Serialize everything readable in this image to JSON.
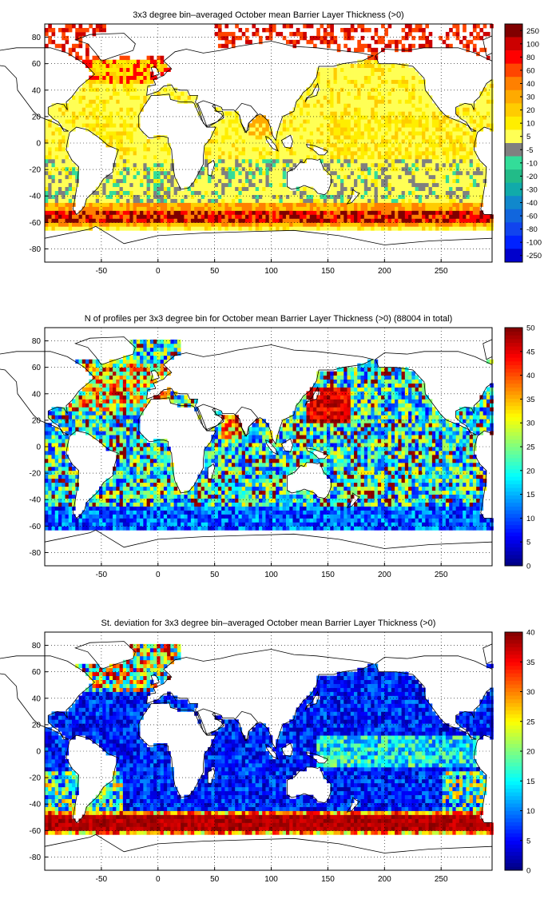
{
  "panels": [
    {
      "id": "bl-mean",
      "title": "3x3 degree bin–averaged October mean Barrier Layer Thickness (>0)",
      "colorbar": {
        "kind": "discrete",
        "tick_labels": [
          "250",
          "100",
          "80",
          "60",
          "40",
          "30",
          "20",
          "10",
          "5",
          "-5",
          "-10",
          "-20",
          "-30",
          "-40",
          "-60",
          "-80",
          "-100",
          "-250"
        ],
        "colors": [
          "#800000",
          "#cc0000",
          "#ff0000",
          "#ff4500",
          "#ff8000",
          "#ffaa00",
          "#ffcc00",
          "#ffee00",
          "#ffff55",
          "#808080",
          "#33dd99",
          "#22bb88",
          "#11aaaa",
          "#1188cc",
          "#1166dd",
          "#1144ee",
          "#0022ff",
          "#0000cc"
        ]
      }
    },
    {
      "id": "n-profiles",
      "title": "N of profiles per 3x3 degree bin for October mean Barrier Layer Thickness (>0) (88004 in total)",
      "colorbar": {
        "kind": "jet",
        "min": 0,
        "max": 50,
        "tick_labels": [
          "50",
          "45",
          "40",
          "35",
          "30",
          "25",
          "20",
          "15",
          "10",
          "5",
          "0"
        ]
      }
    },
    {
      "id": "st-dev",
      "title": "St. deviation for 3x3 degree bin–averaged October mean Barrier Layer Thickness (>0)",
      "colorbar": {
        "kind": "jet",
        "min": 0,
        "max": 40,
        "tick_labels": [
          "40",
          "35",
          "30",
          "25",
          "20",
          "15",
          "10",
          "5",
          "0"
        ]
      }
    }
  ],
  "axes": {
    "x_ticks": [
      "-50",
      "0",
      "50",
      "100",
      "150",
      "200",
      "250"
    ],
    "y_ticks": [
      "80",
      "60",
      "40",
      "20",
      "0",
      "-20",
      "-40",
      "-60",
      "-80"
    ],
    "xlim": [
      -100,
      295
    ],
    "ylim": [
      -90,
      90
    ],
    "grid": "dotted"
  },
  "chart_data": [
    {
      "type": "heatmap",
      "title": "3x3 degree bin–averaged October mean Barrier Layer Thickness (>0)",
      "xlim": [
        -100,
        295
      ],
      "ylim": [
        -90,
        90
      ],
      "bin_size_deg": 3,
      "colorbar_ticks": [
        250,
        100,
        80,
        60,
        40,
        30,
        20,
        10,
        5,
        -5,
        -10,
        -20,
        -30,
        -40,
        -60,
        -80,
        -100,
        -250
      ],
      "regions": [
        {
          "region": "Southern Ocean band (-48 to -62)",
          "value_range": "30–250"
        },
        {
          "region": "Tropical Pacific",
          "value_range": "5–20"
        },
        {
          "region": "Western tropical Atlantic / Bay of Bengal",
          "value_range": "5–30"
        },
        {
          "region": "Subtropics (most bins)",
          "value_range": "-5–5"
        },
        {
          "region": "South subtropical band (-15 to -35)",
          "value_range": "-5 to -20"
        },
        {
          "region": "Northern high latitudes",
          "value_range": "10–100"
        }
      ]
    },
    {
      "type": "heatmap",
      "title": "N of profiles per 3x3 degree bin for October mean Barrier Layer Thickness (>0) (88004 in total)",
      "xlim": [
        -100,
        295
      ],
      "ylim": [
        -90,
        90
      ],
      "bin_size_deg": 3,
      "zlim": [
        0,
        50
      ],
      "total_profiles": 88004,
      "regions": [
        {
          "region": "Northwest Pacific (20 to 45N, 130 to 165E)",
          "value_range": "45–50"
        },
        {
          "region": "North Atlantic / Arabian Sea",
          "value_range": "30–50"
        },
        {
          "region": "Open ocean typical",
          "value_range": "10–30"
        },
        {
          "region": "Southern Ocean",
          "value_range": "5–15"
        }
      ]
    },
    {
      "type": "heatmap",
      "title": "St. deviation for 3x3 degree bin–averaged October mean Barrier Layer Thickness (>0)",
      "xlim": [
        -100,
        295
      ],
      "ylim": [
        -90,
        90
      ],
      "bin_size_deg": 3,
      "zlim": [
        0,
        40
      ],
      "regions": [
        {
          "region": "Southern Ocean band (-45 to -62)",
          "value_range": "35–40"
        },
        {
          "region": "Equatorial Pacific",
          "value_range": "10–20"
        },
        {
          "region": "Most open ocean",
          "value_range": "2–10"
        },
        {
          "region": "Northern high latitudes",
          "value_range": "10–40"
        }
      ]
    }
  ]
}
